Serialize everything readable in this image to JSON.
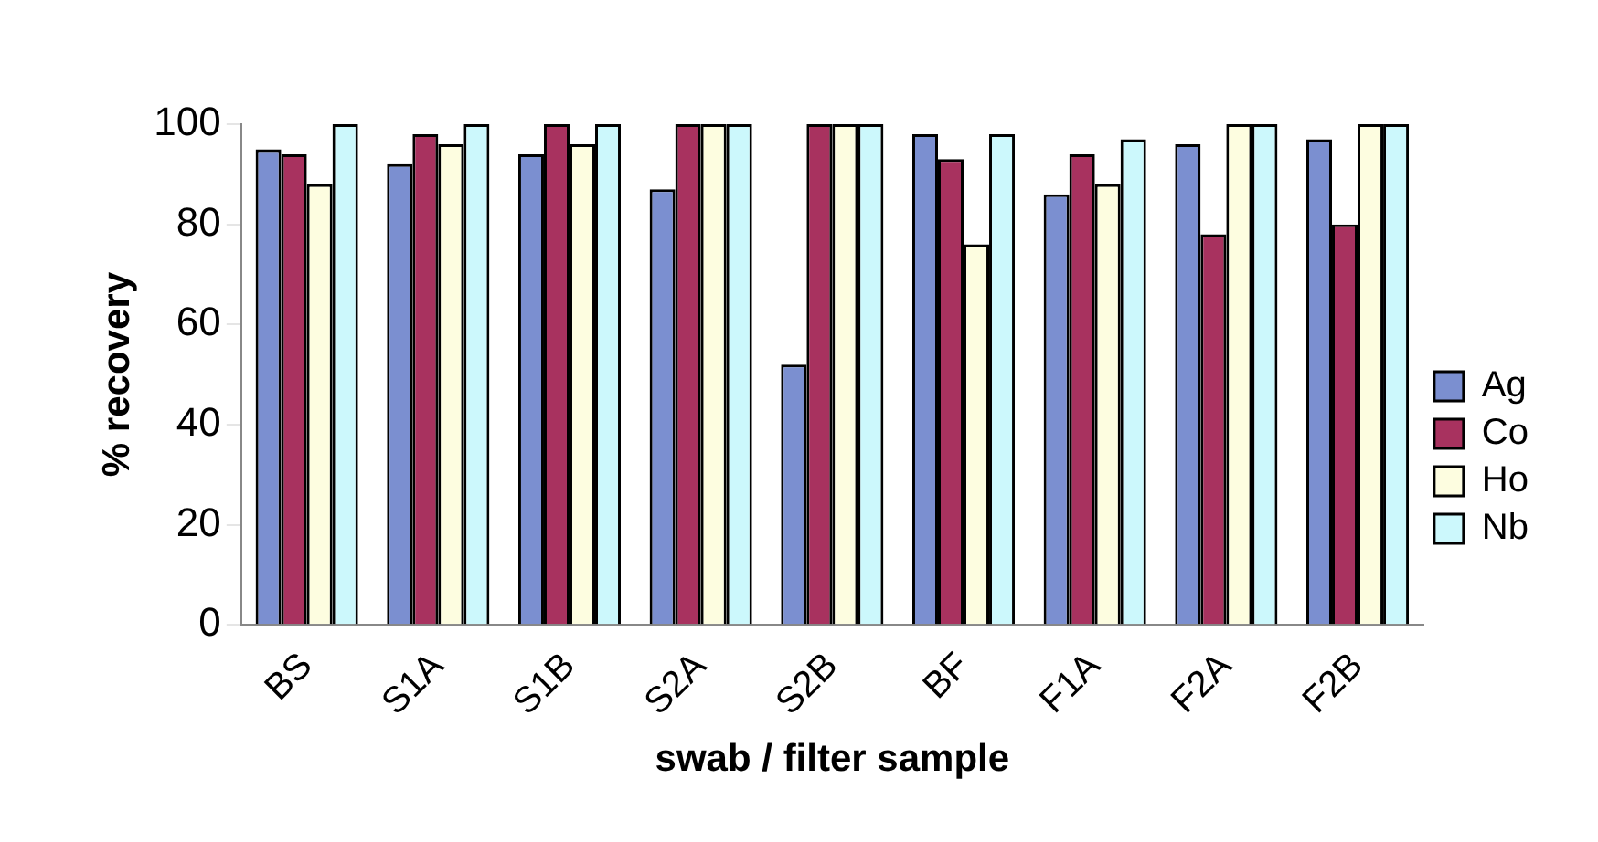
{
  "chart_data": {
    "type": "bar",
    "xlabel": "swab / filter sample",
    "ylabel": "% recovery",
    "categories": [
      "BS",
      "S1A",
      "S1B",
      "S2A",
      "S2B",
      "BF",
      "F1A",
      "F2A",
      "F2B"
    ],
    "series": [
      {
        "name": "Ag",
        "color": "#7b8fd0",
        "values": [
          95,
          92,
          94,
          87,
          52,
          98,
          86,
          96,
          97
        ]
      },
      {
        "name": "Co",
        "color": "#a8325f",
        "values": [
          94,
          98,
          100,
          100,
          100,
          93,
          94,
          78,
          80
        ]
      },
      {
        "name": "Ho",
        "color": "#fdfde0",
        "values": [
          88,
          96,
          96,
          100,
          100,
          76,
          88,
          100,
          100
        ]
      },
      {
        "name": "Nb",
        "color": "#ccf8fc",
        "values": [
          100,
          100,
          100,
          100,
          100,
          98,
          97,
          100,
          100
        ]
      }
    ],
    "ylim": [
      0,
      100
    ],
    "yticks": [
      0,
      20,
      40,
      60,
      80,
      100
    ],
    "grid": false,
    "legend": "right"
  }
}
